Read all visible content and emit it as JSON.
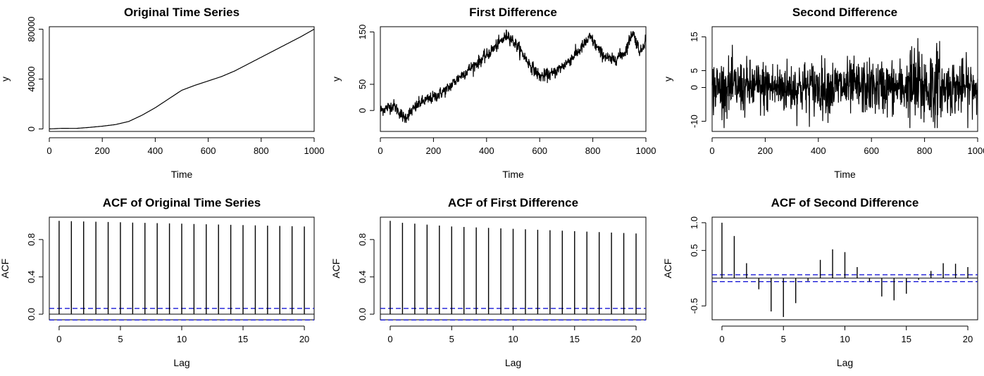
{
  "chart_data": [
    {
      "type": "line",
      "title": "Original Time Series",
      "xlabel": "Time",
      "ylabel": "y",
      "xlim": [
        0,
        1000
      ],
      "ylim": [
        -2000,
        82000
      ],
      "xticks": [
        "0",
        "200",
        "400",
        "600",
        "800",
        "1000"
      ],
      "yticks": [
        "0",
        "40000",
        "80000"
      ],
      "series": [
        {
          "x": [
            0,
            50,
            100,
            150,
            200,
            250,
            300,
            350,
            400,
            450,
            500,
            550,
            600,
            650,
            700,
            750,
            800,
            850,
            900,
            950,
            1000
          ],
          "values": [
            0,
            500,
            400,
            1200,
            2200,
            3500,
            6000,
            11000,
            17000,
            24000,
            31000,
            35000,
            38500,
            42000,
            46500,
            52000,
            57500,
            63000,
            68500,
            74000,
            80000
          ]
        }
      ]
    },
    {
      "type": "line",
      "title": "First Difference",
      "xlabel": "Time",
      "ylabel": "y",
      "xlim": [
        0,
        1000
      ],
      "ylim": [
        -40,
        160
      ],
      "xticks": [
        "0",
        "200",
        "400",
        "600",
        "800",
        "1000"
      ],
      "yticks": [
        "0",
        "50",
        "150"
      ],
      "series": [
        {
          "x": [
            0,
            50,
            90,
            150,
            200,
            250,
            300,
            350,
            400,
            450,
            480,
            520,
            560,
            600,
            650,
            700,
            750,
            790,
            830,
            870,
            920,
            950,
            980,
            1000
          ],
          "values": [
            0,
            10,
            -15,
            15,
            25,
            40,
            65,
            85,
            105,
            130,
            145,
            120,
            90,
            65,
            70,
            90,
            115,
            140,
            110,
            95,
            110,
            150,
            110,
            140
          ]
        }
      ]
    },
    {
      "type": "line",
      "title": "Second Difference",
      "xlabel": "Time",
      "ylabel": "y",
      "xlim": [
        0,
        1000
      ],
      "ylim": [
        -13,
        18
      ],
      "xticks": [
        "0",
        "200",
        "400",
        "600",
        "800",
        "1000"
      ],
      "yticks": [
        "-10",
        "0",
        "5",
        "15"
      ],
      "series": [
        {
          "x": [
            0,
            1000
          ],
          "values": [
            0,
            0
          ],
          "noise": {
            "n": 1000,
            "sd": 4,
            "min": -12,
            "max": 16
          }
        }
      ]
    },
    {
      "type": "bar",
      "title": "ACF of Original Time Series",
      "xlabel": "Lag",
      "ylabel": "ACF",
      "xlim": [
        -0.8,
        20.8
      ],
      "ylim": [
        -0.06,
        1.04
      ],
      "xticks": [
        "0",
        "5",
        "10",
        "15",
        "20"
      ],
      "yticks": [
        "0.0",
        "0.4",
        "0.8"
      ],
      "ci": 0.062,
      "lags": [
        0,
        1,
        2,
        3,
        4,
        5,
        6,
        7,
        8,
        9,
        10,
        11,
        12,
        13,
        14,
        15,
        16,
        17,
        18,
        19,
        20
      ],
      "values": [
        1.0,
        0.997,
        0.994,
        0.991,
        0.988,
        0.985,
        0.982,
        0.979,
        0.976,
        0.973,
        0.97,
        0.967,
        0.964,
        0.961,
        0.958,
        0.955,
        0.952,
        0.949,
        0.946,
        0.943,
        0.94
      ]
    },
    {
      "type": "bar",
      "title": "ACF of First Difference",
      "xlabel": "Lag",
      "ylabel": "ACF",
      "xlim": [
        -0.8,
        20.8
      ],
      "ylim": [
        -0.06,
        1.04
      ],
      "xticks": [
        "0",
        "5",
        "10",
        "15",
        "20"
      ],
      "yticks": [
        "0.0",
        "0.4",
        "0.8"
      ],
      "ci": 0.062,
      "lags": [
        0,
        1,
        2,
        3,
        4,
        5,
        6,
        7,
        8,
        9,
        10,
        11,
        12,
        13,
        14,
        15,
        16,
        17,
        18,
        19,
        20
      ],
      "values": [
        1.0,
        0.98,
        0.97,
        0.96,
        0.95,
        0.94,
        0.935,
        0.93,
        0.925,
        0.92,
        0.915,
        0.91,
        0.905,
        0.9,
        0.895,
        0.89,
        0.885,
        0.88,
        0.875,
        0.87,
        0.865
      ]
    },
    {
      "type": "bar",
      "title": "ACF of Second Difference",
      "xlabel": "Lag",
      "ylabel": "ACF",
      "xlim": [
        -0.8,
        20.8
      ],
      "ylim": [
        -0.75,
        1.1
      ],
      "xticks": [
        "0",
        "5",
        "10",
        "15",
        "20"
      ],
      "yticks": [
        "-0.5",
        "0.5",
        "1.0"
      ],
      "ci": 0.062,
      "lags": [
        0,
        1,
        2,
        3,
        4,
        5,
        6,
        7,
        8,
        9,
        10,
        11,
        12,
        13,
        14,
        15,
        16,
        17,
        18,
        19,
        20
      ],
      "values": [
        1.0,
        0.76,
        0.27,
        -0.2,
        -0.6,
        -0.7,
        -0.45,
        -0.05,
        0.33,
        0.52,
        0.47,
        0.2,
        -0.06,
        -0.33,
        -0.4,
        -0.28,
        -0.03,
        0.13,
        0.27,
        0.26,
        0.2
      ]
    }
  ]
}
